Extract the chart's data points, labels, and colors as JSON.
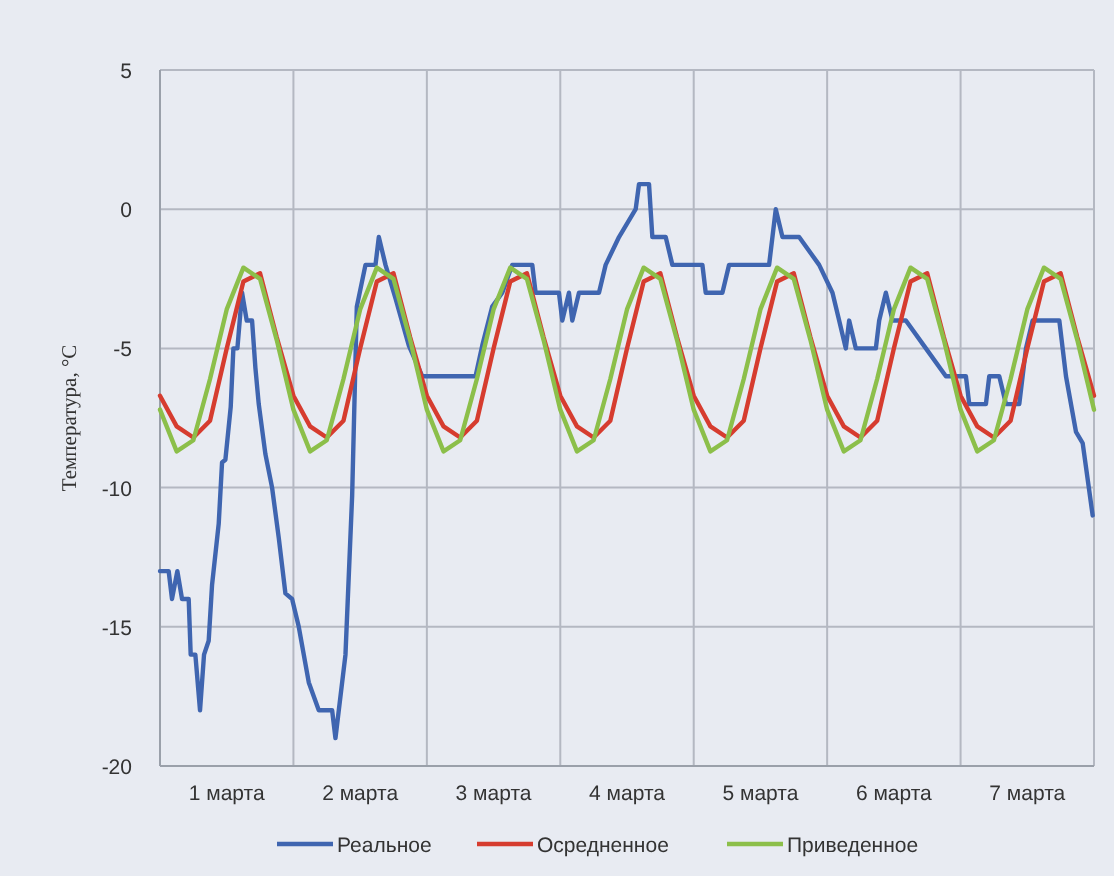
{
  "chart_data": {
    "type": "line",
    "ylabel": "Температура, °С",
    "xlim": [
      0,
      7
    ],
    "ylim": [
      -20,
      5
    ],
    "yticks": [
      -20,
      -15,
      -10,
      -5,
      0,
      5
    ],
    "xticks": [
      {
        "value": 0,
        "label": null
      },
      {
        "value": 0.5,
        "label": "1 марта"
      },
      {
        "value": 1,
        "label": null
      },
      {
        "value": 1.5,
        "label": "2 марта"
      },
      {
        "value": 2,
        "label": null
      },
      {
        "value": 2.5,
        "label": "3 марта"
      },
      {
        "value": 3,
        "label": null
      },
      {
        "value": 3.5,
        "label": "4 марта"
      },
      {
        "value": 4,
        "label": null
      },
      {
        "value": 4.5,
        "label": "5 марта"
      },
      {
        "value": 5,
        "label": null
      },
      {
        "value": 5.5,
        "label": "6 марта"
      },
      {
        "value": 6,
        "label": null
      },
      {
        "value": 6.5,
        "label": "7 марта"
      },
      {
        "value": 7,
        "label": null
      }
    ],
    "x": [
      0,
      0.125,
      0.25,
      0.375,
      0.5,
      0.625,
      0.75,
      0.875,
      1,
      1.125,
      1.25,
      1.375,
      1.5,
      1.625,
      1.75,
      1.875,
      2,
      2.125,
      2.25,
      2.375,
      2.5,
      2.625,
      2.75,
      2.875,
      3,
      3.125,
      3.25,
      3.375,
      3.5,
      3.625,
      3.75,
      3.875,
      4,
      4.125,
      4.25,
      4.375,
      4.5,
      4.625,
      4.75,
      4.875,
      5,
      5.125,
      5.25,
      5.375,
      5.5,
      5.625,
      5.75,
      5.875,
      6,
      6.125,
      6.25,
      6.375,
      6.5,
      6.625,
      6.75,
      6.875,
      7
    ],
    "grid": true,
    "legend": "bottom",
    "line_style": "solid",
    "marker": "none",
    "series": [
      {
        "name": "Реальное",
        "color": "#3f65b0",
        "x": [
          0,
          0.065,
          0.09,
          0.13,
          0.165,
          0.215,
          0.23,
          0.265,
          0.3,
          0.33,
          0.365,
          0.39,
          0.44,
          0.465,
          0.49,
          0.53,
          0.55,
          0.58,
          0.615,
          0.65,
          0.69,
          0.715,
          0.74,
          0.79,
          0.84,
          0.89,
          0.94,
          0.99,
          1.04,
          1.115,
          1.19,
          1.29,
          1.315,
          1.34,
          1.39,
          1.44,
          1.475,
          1.54,
          1.615,
          1.64,
          1.69,
          1.765,
          1.865,
          1.965,
          2.365,
          2.415,
          2.49,
          2.565,
          2.64,
          2.79,
          2.815,
          2.99,
          3.015,
          3.065,
          3.09,
          3.14,
          3.265,
          3.29,
          3.34,
          3.44,
          3.565,
          3.59,
          3.665,
          3.69,
          3.79,
          3.84,
          4.065,
          4.09,
          4.165,
          4.215,
          4.265,
          4.565,
          4.615,
          4.665,
          4.79,
          4.94,
          5.04,
          5.09,
          5.14,
          5.165,
          5.215,
          5.365,
          5.39,
          5.44,
          5.49,
          5.59,
          5.74,
          5.89,
          6.04,
          6.065,
          6.19,
          6.215,
          6.29,
          6.34,
          6.44,
          6.49,
          6.54,
          6.74,
          6.79,
          6.865,
          6.915,
          6.99
        ],
        "values": [
          -13,
          -13,
          -14,
          -13,
          -14,
          -14,
          -16,
          -16,
          -18,
          -16,
          -15.5,
          -13.5,
          -11.3,
          -9.1,
          -9,
          -7.1,
          -5,
          -5,
          -3,
          -4,
          -4,
          -5.7,
          -7,
          -8.8,
          -10,
          -11.8,
          -13.8,
          -14,
          -15,
          -17,
          -18,
          -18,
          -19,
          -18,
          -16,
          -10.3,
          -3.5,
          -2,
          -2,
          -1,
          -2,
          -3.2,
          -4.9,
          -6,
          -6,
          -4.9,
          -3.5,
          -3,
          -2,
          -2,
          -3,
          -3,
          -4,
          -3,
          -4,
          -3,
          -3,
          -3,
          -2,
          -1,
          0,
          0.9,
          0.9,
          -1,
          -1,
          -2,
          -2,
          -3,
          -3,
          -3,
          -2,
          -2,
          0,
          -1,
          -1,
          -2,
          -3,
          -4,
          -5,
          -4,
          -5,
          -5,
          -4,
          -3,
          -4,
          -4,
          -5,
          -6,
          -6,
          -7,
          -7,
          -6,
          -6,
          -7,
          -7,
          -5,
          -4,
          -4,
          -6,
          -8,
          -8.4,
          -11
        ]
      },
      {
        "name": "Осредненное",
        "color": "#d63c2f",
        "values": [
          -6.7,
          -7.8,
          -8.2,
          -7.6,
          -5,
          -2.6,
          -2.3,
          -4.6,
          -6.7,
          -7.8,
          -8.2,
          -7.6,
          -5,
          -2.6,
          -2.3,
          -4.6,
          -6.7,
          -7.8,
          -8.2,
          -7.6,
          -5,
          -2.6,
          -2.3,
          -4.6,
          -6.7,
          -7.8,
          -8.2,
          -7.6,
          -5,
          -2.6,
          -2.3,
          -4.6,
          -6.7,
          -7.8,
          -8.2,
          -7.6,
          -5,
          -2.6,
          -2.3,
          -4.6,
          -6.7,
          -7.8,
          -8.2,
          -7.6,
          -5,
          -2.6,
          -2.3,
          -4.6,
          -6.7,
          -7.8,
          -8.2,
          -7.6,
          -5,
          -2.6,
          -2.3,
          -4.6,
          -6.7
        ]
      },
      {
        "name": "Приведенное",
        "color": "#8cbf4a",
        "values": [
          -7.2,
          -8.7,
          -8.3,
          -6.1,
          -3.6,
          -2.1,
          -2.5,
          -4.7,
          -7.2,
          -8.7,
          -8.3,
          -6.1,
          -3.6,
          -2.1,
          -2.5,
          -4.7,
          -7.2,
          -8.7,
          -8.3,
          -6.1,
          -3.6,
          -2.1,
          -2.5,
          -4.7,
          -7.2,
          -8.7,
          -8.3,
          -6.1,
          -3.6,
          -2.1,
          -2.5,
          -4.7,
          -7.2,
          -8.7,
          -8.3,
          -6.1,
          -3.6,
          -2.1,
          -2.5,
          -4.7,
          -7.2,
          -8.7,
          -8.3,
          -6.1,
          -3.6,
          -2.1,
          -2.5,
          -4.7,
          -7.2,
          -8.7,
          -8.3,
          -6.1,
          -3.6,
          -2.1,
          -2.5,
          -4.7,
          -7.2
        ]
      }
    ]
  }
}
